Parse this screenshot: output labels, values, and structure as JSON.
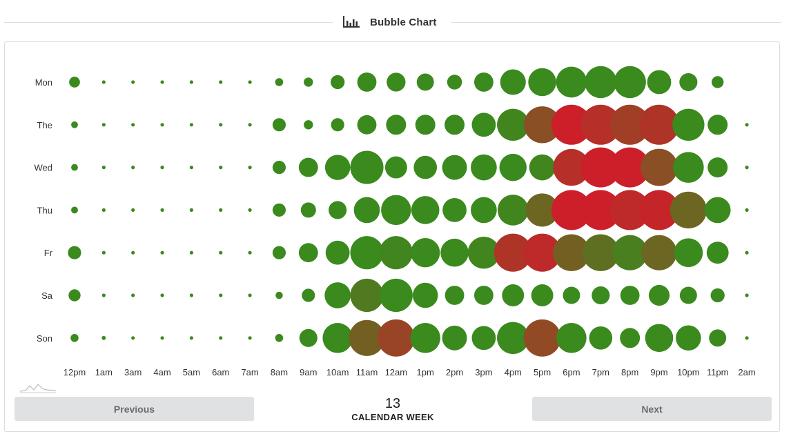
{
  "header": {
    "title": "Bubble Chart",
    "icon": "bar-chart-icon"
  },
  "navigation": {
    "previous_label": "Previous",
    "next_label": "Next",
    "week_number": "13",
    "week_label": "CALENDAR WEEK"
  },
  "chart_data": {
    "type": "bubble",
    "title": "Bubble Chart",
    "days": [
      "Mon",
      "The",
      "Wed",
      "Thu",
      "Fr",
      "Sa",
      "Son"
    ],
    "hours": [
      "12pm",
      "1am",
      "3am",
      "4am",
      "5am",
      "6am",
      "7am",
      "8am",
      "9am",
      "10am",
      "11am",
      "12am",
      "1pm",
      "2pm",
      "3pm",
      "4pm",
      "5pm",
      "6pm",
      "7pm",
      "8pm",
      "9pm",
      "10pm",
      "11pm",
      "2am"
    ],
    "radius_scale": "relative size 0-1",
    "color_scale": "0 = green, 1 = red",
    "colors": {
      "low": "#3a8a1e",
      "high": "#cc1f2a"
    },
    "sizes": [
      [
        0.27,
        0.08,
        0.08,
        0.08,
        0.08,
        0.08,
        0.08,
        0.2,
        0.23,
        0.35,
        0.48,
        0.47,
        0.43,
        0.37,
        0.48,
        0.64,
        0.7,
        0.77,
        0.8,
        0.8,
        0.6,
        0.45,
        0.3,
        0.0
      ],
      [
        0.17,
        0.08,
        0.08,
        0.08,
        0.08,
        0.08,
        0.08,
        0.33,
        0.23,
        0.33,
        0.48,
        0.5,
        0.5,
        0.5,
        0.6,
        0.8,
        0.92,
        1.0,
        1.0,
        1.0,
        1.0,
        0.8,
        0.5,
        0.08
      ],
      [
        0.17,
        0.08,
        0.08,
        0.08,
        0.08,
        0.08,
        0.08,
        0.33,
        0.48,
        0.63,
        0.83,
        0.55,
        0.58,
        0.62,
        0.65,
        0.68,
        0.65,
        0.92,
        1.0,
        1.0,
        0.93,
        0.77,
        0.5,
        0.08
      ],
      [
        0.17,
        0.08,
        0.08,
        0.08,
        0.08,
        0.08,
        0.08,
        0.33,
        0.38,
        0.45,
        0.65,
        0.75,
        0.7,
        0.6,
        0.65,
        0.77,
        0.83,
        1.0,
        1.0,
        1.0,
        1.0,
        0.92,
        0.65,
        0.08
      ],
      [
        0.33,
        0.08,
        0.08,
        0.08,
        0.08,
        0.08,
        0.08,
        0.33,
        0.48,
        0.6,
        0.83,
        0.83,
        0.73,
        0.7,
        0.8,
        0.95,
        0.95,
        0.92,
        0.92,
        0.88,
        0.88,
        0.72,
        0.55,
        0.08
      ],
      [
        0.3,
        0.08,
        0.08,
        0.08,
        0.08,
        0.08,
        0.08,
        0.18,
        0.33,
        0.65,
        0.83,
        0.83,
        0.63,
        0.48,
        0.48,
        0.55,
        0.55,
        0.43,
        0.45,
        0.48,
        0.52,
        0.43,
        0.35,
        0.08
      ],
      [
        0.2,
        0.1,
        0.08,
        0.08,
        0.08,
        0.08,
        0.08,
        0.2,
        0.45,
        0.75,
        0.9,
        0.93,
        0.75,
        0.62,
        0.6,
        0.8,
        0.93,
        0.75,
        0.58,
        0.5,
        0.7,
        0.63,
        0.43,
        0.08
      ]
    ],
    "intensity": [
      [
        0,
        0,
        0,
        0,
        0,
        0,
        0,
        0,
        0,
        0,
        0,
        0,
        0,
        0,
        0,
        0,
        0,
        0,
        0,
        0,
        0,
        0,
        0,
        0
      ],
      [
        0,
        0,
        0,
        0,
        0,
        0,
        0,
        0,
        0,
        0,
        0,
        0,
        0,
        0,
        0,
        0.05,
        0.55,
        1.0,
        0.85,
        0.7,
        0.8,
        0,
        0,
        0
      ],
      [
        0,
        0,
        0,
        0,
        0,
        0,
        0,
        0,
        0,
        0,
        0,
        0,
        0,
        0,
        0,
        0,
        0.05,
        0.85,
        1.0,
        1.0,
        0.55,
        0,
        0,
        0
      ],
      [
        0,
        0,
        0,
        0,
        0,
        0,
        0,
        0,
        0,
        0,
        0,
        0,
        0,
        0,
        0,
        0.05,
        0.35,
        1.0,
        1.0,
        0.9,
        0.95,
        0.35,
        0,
        0
      ],
      [
        0,
        0,
        0,
        0,
        0,
        0,
        0,
        0,
        0,
        0,
        0,
        0.05,
        0,
        0,
        0.05,
        0.8,
        0.9,
        0.4,
        0.25,
        0.1,
        0.35,
        0,
        0,
        0
      ],
      [
        0,
        0,
        0,
        0,
        0,
        0,
        0,
        0,
        0,
        0,
        0.15,
        0,
        0,
        0,
        0,
        0,
        0,
        0,
        0,
        0,
        0,
        0,
        0,
        0
      ],
      [
        0,
        0,
        0,
        0,
        0,
        0,
        0,
        0,
        0,
        0,
        0.4,
        0.65,
        0,
        0,
        0,
        0,
        0.6,
        0,
        0,
        0,
        0,
        0,
        0,
        0
      ]
    ]
  }
}
